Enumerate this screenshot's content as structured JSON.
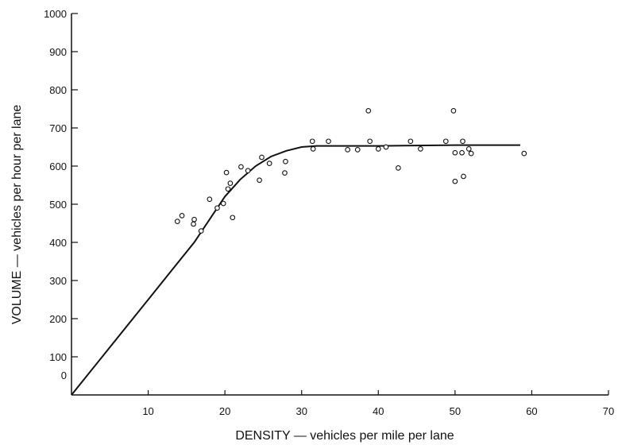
{
  "chart_data": {
    "type": "scatter",
    "title": "",
    "xlabel": "DENSITY — vehicles per mile per lane",
    "ylabel": "VOLUME — vehicles per hour per lane",
    "xlim": [
      0,
      70
    ],
    "ylim": [
      0,
      1000
    ],
    "x_ticks": [
      10,
      20,
      30,
      40,
      50,
      60,
      70
    ],
    "x_tick_labels": [
      "10",
      "20",
      "30",
      "40",
      "50",
      "60",
      "70"
    ],
    "y_ticks": [
      0,
      100,
      200,
      300,
      400,
      500,
      600,
      700,
      800,
      900,
      1000
    ],
    "y_tick_labels": [
      "0",
      "100",
      "200",
      "300",
      "400",
      "500",
      "600",
      "700",
      "800",
      "900",
      "1000"
    ],
    "grid": false,
    "series": [
      {
        "type": "scatter",
        "points": [
          [
            13.8,
            455
          ],
          [
            14.4,
            470
          ],
          [
            15.9,
            448
          ],
          [
            16.0,
            460
          ],
          [
            16.9,
            430
          ],
          [
            18.0,
            513
          ],
          [
            19.0,
            490
          ],
          [
            19.8,
            502
          ],
          [
            20.2,
            583
          ],
          [
            20.4,
            540
          ],
          [
            20.7,
            555
          ],
          [
            21.0,
            465
          ],
          [
            22.1,
            598
          ],
          [
            23.0,
            588
          ],
          [
            24.5,
            563
          ],
          [
            24.8,
            623
          ],
          [
            25.8,
            607
          ],
          [
            27.8,
            582
          ],
          [
            27.9,
            612
          ],
          [
            31.4,
            665
          ],
          [
            31.5,
            645
          ],
          [
            33.5,
            665
          ],
          [
            36.0,
            643
          ],
          [
            37.3,
            643
          ],
          [
            38.7,
            745
          ],
          [
            38.9,
            665
          ],
          [
            40.0,
            645
          ],
          [
            41.0,
            650
          ],
          [
            42.6,
            595
          ],
          [
            44.2,
            665
          ],
          [
            45.5,
            645
          ],
          [
            48.8,
            665
          ],
          [
            49.8,
            745
          ],
          [
            50.0,
            635
          ],
          [
            50.0,
            560
          ],
          [
            50.9,
            635
          ],
          [
            51.0,
            665
          ],
          [
            51.1,
            573
          ],
          [
            51.8,
            645
          ],
          [
            52.1,
            633
          ],
          [
            59.0,
            633
          ]
        ]
      },
      {
        "type": "line",
        "points": [
          [
            0,
            0
          ],
          [
            5,
            125
          ],
          [
            10,
            250
          ],
          [
            13,
            325
          ],
          [
            16,
            400
          ],
          [
            18,
            460
          ],
          [
            20,
            520
          ],
          [
            22,
            565
          ],
          [
            24,
            600
          ],
          [
            26,
            625
          ],
          [
            28,
            640
          ],
          [
            30,
            650
          ],
          [
            32,
            653
          ],
          [
            35,
            653
          ],
          [
            40,
            653
          ],
          [
            45,
            654
          ],
          [
            50,
            655
          ],
          [
            55,
            655
          ],
          [
            58.5,
            655
          ]
        ]
      }
    ]
  }
}
